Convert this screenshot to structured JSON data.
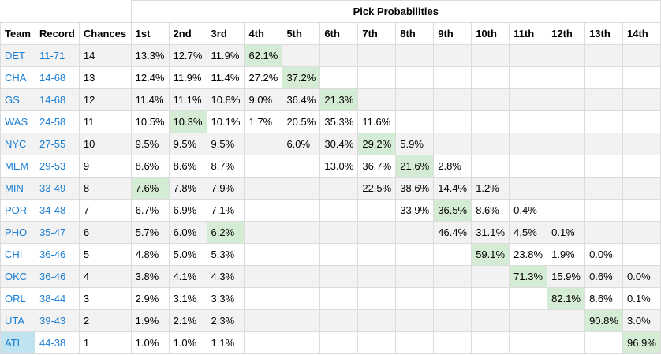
{
  "table": {
    "group_header": "Pick Probabilities",
    "columns": [
      "Team",
      "Record",
      "Chances",
      "1st",
      "2nd",
      "3rd",
      "4th",
      "5th",
      "6th",
      "7th",
      "8th",
      "9th",
      "10th",
      "11th",
      "12th",
      "13th",
      "14th"
    ],
    "rows": [
      {
        "team": "DET",
        "record": "11-71",
        "chances": "14",
        "probs": [
          "13.3%",
          "12.7%",
          "11.9%",
          "62.1%",
          "",
          "",
          "",
          "",
          "",
          "",
          "",
          "",
          "",
          ""
        ],
        "highlight": 3
      },
      {
        "team": "CHA",
        "record": "14-68",
        "chances": "13",
        "probs": [
          "12.4%",
          "11.9%",
          "11.4%",
          "27.2%",
          "37.2%",
          "",
          "",
          "",
          "",
          "",
          "",
          "",
          "",
          ""
        ],
        "highlight": 4
      },
      {
        "team": "GS",
        "record": "14-68",
        "chances": "12",
        "probs": [
          "11.4%",
          "11.1%",
          "10.8%",
          "9.0%",
          "36.4%",
          "21.3%",
          "",
          "",
          "",
          "",
          "",
          "",
          "",
          ""
        ],
        "highlight": 5
      },
      {
        "team": "WAS",
        "record": "24-58",
        "chances": "11",
        "probs": [
          "10.5%",
          "10.3%",
          "10.1%",
          "1.7%",
          "20.5%",
          "35.3%",
          "11.6%",
          "",
          "",
          "",
          "",
          "",
          "",
          ""
        ],
        "highlight": 1
      },
      {
        "team": "NYC",
        "record": "27-55",
        "chances": "10",
        "probs": [
          "9.5%",
          "9.5%",
          "9.5%",
          "",
          "6.0%",
          "30.4%",
          "29.2%",
          "5.9%",
          "",
          "",
          "",
          "",
          "",
          ""
        ],
        "highlight": 6
      },
      {
        "team": "MEM",
        "record": "29-53",
        "chances": "9",
        "probs": [
          "8.6%",
          "8.6%",
          "8.7%",
          "",
          "",
          "13.0%",
          "36.7%",
          "21.6%",
          "2.8%",
          "",
          "",
          "",
          "",
          ""
        ],
        "highlight": 7
      },
      {
        "team": "MIN",
        "record": "33-49",
        "chances": "8",
        "probs": [
          "7.6%",
          "7.8%",
          "7.9%",
          "",
          "",
          "",
          "22.5%",
          "38.6%",
          "14.4%",
          "1.2%",
          "",
          "",
          "",
          ""
        ],
        "highlight": 0
      },
      {
        "team": "POR",
        "record": "34-48",
        "chances": "7",
        "probs": [
          "6.7%",
          "6.9%",
          "7.1%",
          "",
          "",
          "",
          "",
          "33.9%",
          "36.5%",
          "8.6%",
          "0.4%",
          "",
          "",
          ""
        ],
        "highlight": 8
      },
      {
        "team": "PHO",
        "record": "35-47",
        "chances": "6",
        "probs": [
          "5.7%",
          "6.0%",
          "6.2%",
          "",
          "",
          "",
          "",
          "",
          "46.4%",
          "31.1%",
          "4.5%",
          "0.1%",
          "",
          ""
        ],
        "highlight": 2
      },
      {
        "team": "CHI",
        "record": "36-46",
        "chances": "5",
        "probs": [
          "4.8%",
          "5.0%",
          "5.3%",
          "",
          "",
          "",
          "",
          "",
          "",
          "59.1%",
          "23.8%",
          "1.9%",
          "0.0%",
          ""
        ],
        "highlight": 9
      },
      {
        "team": "OKC",
        "record": "36-46",
        "chances": "4",
        "probs": [
          "3.8%",
          "4.1%",
          "4.3%",
          "",
          "",
          "",
          "",
          "",
          "",
          "",
          "71.3%",
          "15.9%",
          "0.6%",
          "0.0%"
        ],
        "highlight": 10
      },
      {
        "team": "ORL",
        "record": "38-44",
        "chances": "3",
        "probs": [
          "2.9%",
          "3.1%",
          "3.3%",
          "",
          "",
          "",
          "",
          "",
          "",
          "",
          "",
          "82.1%",
          "8.6%",
          "0.1%"
        ],
        "highlight": 11
      },
      {
        "team": "UTA",
        "record": "39-43",
        "chances": "2",
        "probs": [
          "1.9%",
          "2.1%",
          "2.3%",
          "",
          "",
          "",
          "",
          "",
          "",
          "",
          "",
          "",
          "90.8%",
          "3.0%"
        ],
        "highlight": 12
      },
      {
        "team": "ATL",
        "record": "44-38",
        "chances": "1",
        "probs": [
          "1.0%",
          "1.0%",
          "1.1%",
          "",
          "",
          "",
          "",
          "",
          "",
          "",
          "",
          "",
          "",
          "96.9%"
        ],
        "highlight": 13,
        "team_highlight": true
      }
    ]
  },
  "colors": {
    "link": "#1a7ed3",
    "highlight_cell": "#d5ecd4",
    "selected_team": "#bfe4f0",
    "row_stripe": "#f2f2f2",
    "border": "#dcdcdc"
  }
}
